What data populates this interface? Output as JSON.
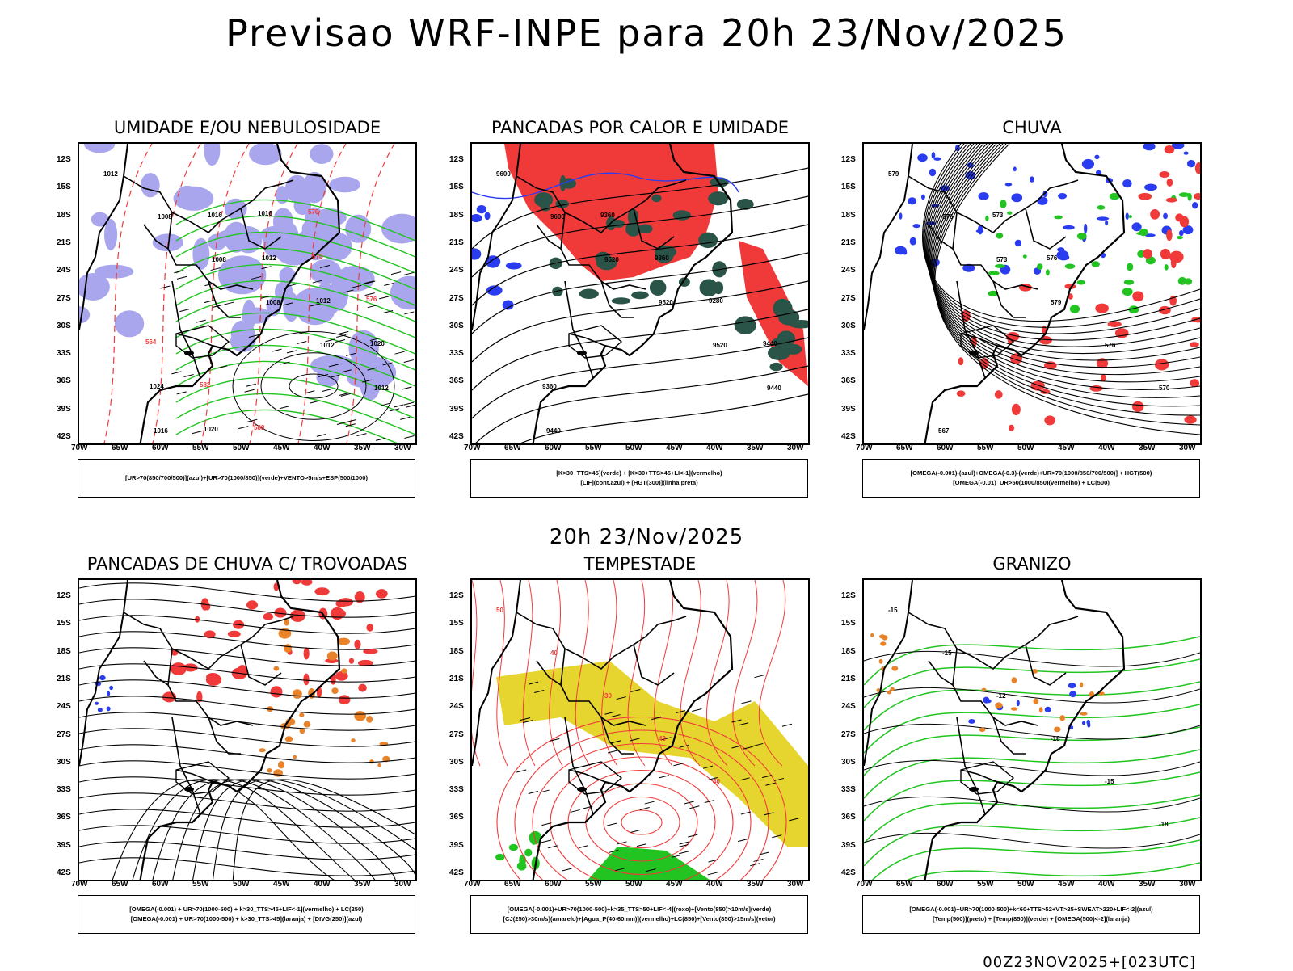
{
  "title": "Previsao WRF-INPE  para 20h 23/Nov/2025",
  "subtitle": "20h 23/Nov/2025",
  "footer": "00Z23NOV2025+[023UTC]",
  "lat_labels": [
    "12S",
    "15S",
    "18S",
    "21S",
    "24S",
    "27S",
    "30S",
    "33S",
    "36S",
    "39S",
    "42S"
  ],
  "lon_labels": [
    "70W",
    "65W",
    "60W",
    "55W",
    "50W",
    "45W",
    "40W",
    "35W",
    "30W"
  ],
  "panels": [
    {
      "title": "UMIDADE E/OU NEBULOSIDADE",
      "legend": [
        "[UR>70(850/700/500)](azul)+[UR>70(1000/850)](verde)+VENTO>5m/s+ESP(500/1000)"
      ],
      "contours": [
        "1012",
        "1008",
        "1008",
        "1008",
        "1012",
        "1012",
        "1016",
        "1016",
        "1012",
        "1012",
        "1020",
        "1024",
        "1020",
        "1016",
        "570",
        "576",
        "564",
        "582",
        "588",
        "570"
      ]
    },
    {
      "title": "PANCADAS POR CALOR E UMIDADE",
      "legend": [
        "[K>30+TTS>45](verde) + [K>30+TTS>45+LI<-1](vermelho)",
        "[LIF](cont.azul) + [HGT(300)](linha preta)"
      ],
      "contours": [
        "9600",
        "9600",
        "9520",
        "9520",
        "9520",
        "9440",
        "9440",
        "9360",
        "9360",
        "9280",
        "9440",
        "9360"
      ]
    },
    {
      "title": "CHUVA",
      "legend": [
        "[OMEGA(-0.001)-(azul)+OMEGA(-0.3)-(verde)+UR>70(1000/850/700/500)] + HGT(500)",
        "[OMEGA(-0.01)_UR>50(1000/850)(vermelho) + LC(500)"
      ],
      "contours": [
        "579",
        "576",
        "573",
        "579",
        "576",
        "570",
        "567",
        "573",
        "576"
      ]
    },
    {
      "title": "PANCADAS DE CHUVA C/ TROVOADAS",
      "legend": [
        "[OMEGA(-0.001) + UR>70(1000-500) + k>30_TTS>45+LIF<-1](vermelho) + LC(250)",
        "[OMEGA(-0.001) + UR>70(1000-500) + k>30_TTS>45](laranja) + [DIVG(250)](azul)"
      ],
      "contours": []
    },
    {
      "title": "TEMPESTADE",
      "legend": [
        "[OMEGA(-0.001)+UR>70(1000-500)+k>35_TTS>50+LIF<-4](roxo)+[Vento(850)>10m/s](verde)",
        "[CJ(250)>30m/s](amarelo)+[Agua_P(40-60mm)](vermelho)+LC(850)+[Vento(850)>15m/s](vetor)"
      ],
      "contours": [
        "50",
        "40",
        "30",
        "40",
        "40"
      ]
    },
    {
      "title": "GRANIZO",
      "legend": [
        "[OMEGA(-0.001)+UR>70(1000-500)+k<60+TTS>52+VT>25+SWEAT>220+LIF<-2](azul)",
        "[Temp(500)](preto) + [Temp(850)](verde) + [OMEGA(500)<-2](laranja)"
      ],
      "contours": [
        "-15",
        "-15",
        "-12",
        "-18",
        "-15",
        "-18"
      ]
    }
  ],
  "colors": {
    "red": "#f03a3a",
    "green": "#22c422",
    "blue": "#2a3cf0",
    "lightblue": "#a9a6ee",
    "darkgreen": "#2b5448",
    "yellow": "#e6d52e",
    "orange": "#e8832a"
  }
}
